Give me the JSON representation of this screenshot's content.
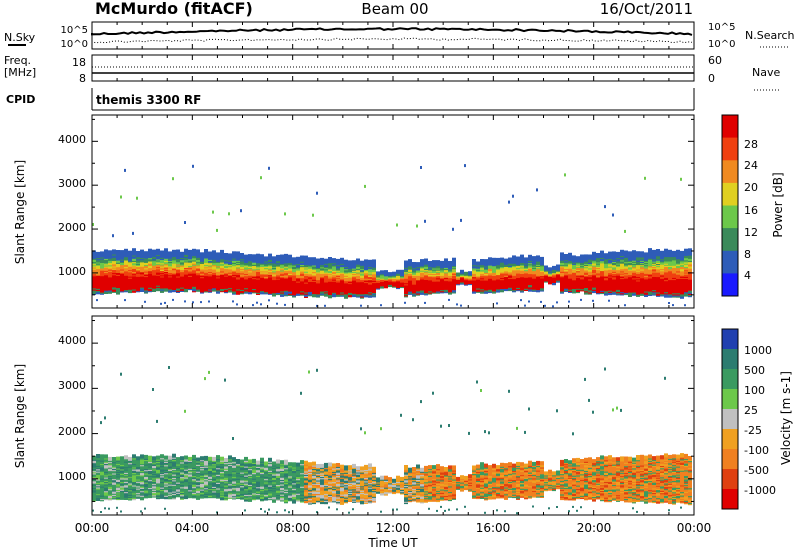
{
  "header": {
    "station": "McMurdo (fitACF)",
    "beam": "Beam 00",
    "date": "16/Oct/2011"
  },
  "strip": {
    "nsky_label": "N.Sky",
    "nsearch_label": "N.Search",
    "noise_ticks_left": [
      "10^5",
      "10^0"
    ],
    "noise_ticks_right": [
      "10^5",
      "10^0"
    ],
    "freq_label": "Freq.",
    "freq_unit": "[MHz]",
    "freq_ticks": [
      "18",
      "8"
    ],
    "nave_label": "Nave",
    "nave_ticks": [
      "60",
      "0"
    ],
    "cpid_label": "CPID",
    "cpid_value": "themis 3300 RF"
  },
  "chart_data": [
    {
      "type": "heatmap",
      "panel": "power",
      "ylabel": "Slant Range [km]",
      "yticks": [
        "1000",
        "2000",
        "3000",
        "4000"
      ],
      "ylim": [
        200,
        4600
      ],
      "colorbar_label": "Power [dB]",
      "colorbar_ticks": [
        "4",
        "8",
        "12",
        "16",
        "20",
        "24",
        "28"
      ],
      "colors": [
        "#1a1aff",
        "#2e5cb8",
        "#3a8a5a",
        "#6cc84a",
        "#e0d020",
        "#f08a20",
        "#f04010",
        "#e00000"
      ],
      "value_range": [
        0,
        32
      ],
      "main_band_km": [
        550,
        1450
      ],
      "peak_band_km": [
        700,
        1150
      ]
    },
    {
      "type": "heatmap",
      "panel": "velocity",
      "ylabel": "Slant Range [km]",
      "yticks": [
        "1000",
        "2000",
        "3000",
        "4000"
      ],
      "ylim": [
        200,
        4600
      ],
      "colorbar_label": "Velocity [m s-1]",
      "colorbar_ticks": [
        "1000",
        "500",
        "100",
        "25",
        "-25",
        "-100",
        "-500",
        "-1000"
      ],
      "colors": [
        "#2040b0",
        "#2c7c70",
        "#3a9a60",
        "#6cc84a",
        "#c0c0c0",
        "#f0a020",
        "#f08020",
        "#e04010",
        "#e00000"
      ],
      "main_band_km": [
        550,
        1450
      ]
    }
  ],
  "xaxis": {
    "label": "Time UT",
    "ticks": [
      "00:00",
      "04:00",
      "08:00",
      "12:00",
      "16:00",
      "20:00",
      "00:00"
    ],
    "range_hours": [
      0,
      24
    ]
  }
}
